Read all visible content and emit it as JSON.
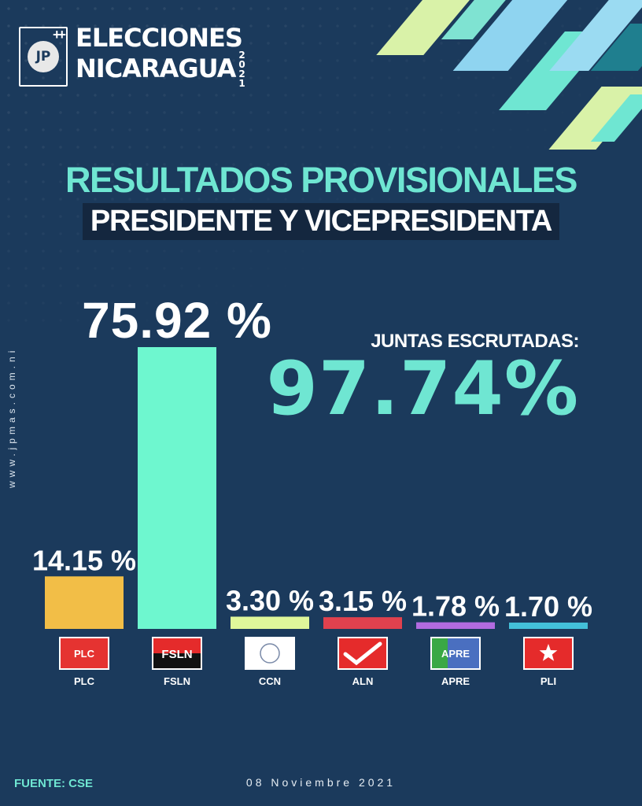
{
  "logo": {
    "badge": "JP",
    "line1": "ELECCIONES",
    "line2": "NICARAGUA",
    "year": "2021"
  },
  "title": "RESULTADOS PROVISIONALES",
  "subtitle": "PRESIDENTE Y VICEPRESIDENTA",
  "juntas": {
    "label": "JUNTAS ESCRUTADAS:",
    "value": "97.74%"
  },
  "watermark": "www.jpmas.com.ni",
  "chart_data": {
    "type": "bar",
    "categories": [
      "PLC",
      "FSLN",
      "CCN",
      "ALN",
      "APRE",
      "PLI"
    ],
    "values": [
      14.15,
      75.92,
      3.3,
      3.15,
      1.78,
      1.7
    ],
    "value_labels": [
      "14.15 %",
      "75.92 %",
      "3.30 %",
      "3.15 %",
      "1.78 %",
      "1.70 %"
    ],
    "bar_colors": [
      "#f2be47",
      "#6ef7cf",
      "#dff79a",
      "#e0414e",
      "#b26be0",
      "#43c0d9"
    ],
    "badges": [
      {
        "text": "PLC",
        "bg": "#e53331",
        "fg": "#ffffff"
      },
      {
        "text": "FSLN",
        "bg": "#111111",
        "fg": "#ffffff"
      },
      {
        "text": "",
        "bg": "#ffffff",
        "fg": "#1b3a5c"
      },
      {
        "text": "",
        "bg": "#e52b2b",
        "fg": "#ffffff"
      },
      {
        "text": "APRE",
        "bg": "#4a6fc0",
        "fg": "#ffffff"
      },
      {
        "text": "",
        "bg": "#e52b2b",
        "fg": "#ffffff"
      }
    ],
    "ylim": [
      0,
      80
    ],
    "grid": false,
    "legend": "none"
  },
  "footer": {
    "source": "FUENTE: CSE",
    "date": "08 Noviembre 2021"
  }
}
